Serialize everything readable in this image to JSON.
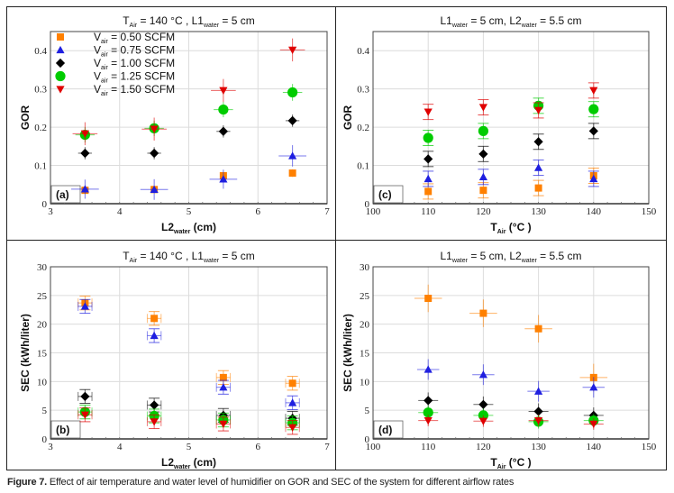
{
  "caption": {
    "label": "Figure 7.",
    "text": " Effect of air temperature and water level of humidifier on GOR and SEC of the system for different airflow rates"
  },
  "series_styles": [
    {
      "name": "V_air = 0.50 SCFM",
      "marker": "square",
      "color": "#ff8000"
    },
    {
      "name": "V_air = 0.75 SCFM",
      "marker": "triangle-up",
      "color": "#1f1fe0"
    },
    {
      "name": "V_air = 1.00 SCFM",
      "marker": "diamond",
      "color": "#000000"
    },
    {
      "name": "V_air = 1.25 SCFM",
      "marker": "circle",
      "color": "#00cc00"
    },
    {
      "name": "V_air = 1.50 SCFM",
      "marker": "triangle-down",
      "color": "#e00000"
    }
  ],
  "legend": {
    "placement": "top-left of panel (a)",
    "entries": [
      {
        "prefix": "V",
        "sub": "air",
        "text": " = 0.50 SCFM"
      },
      {
        "prefix": "V",
        "sub": "air",
        "text": " = 0.75 SCFM"
      },
      {
        "prefix": "V",
        "sub": "air",
        "text": " = 1.00 SCFM"
      },
      {
        "prefix": "V",
        "sub": "air",
        "text": " = 1.25 SCFM"
      },
      {
        "prefix": "V",
        "sub": "air",
        "text": " = 1.50 SCFM"
      }
    ]
  },
  "chart_data": [
    {
      "id": "a",
      "panel_label": "(a)",
      "type": "scatter",
      "title_parts": [
        [
          "T",
          ""
        ],
        [
          "Air",
          "sub"
        ],
        [
          " = 140 °C , L1",
          ""
        ],
        [
          "water",
          "sub"
        ],
        [
          " = 5 cm",
          ""
        ]
      ],
      "xlabel_parts": [
        [
          "L2",
          ""
        ],
        [
          "water",
          "sub"
        ],
        [
          " (cm)",
          ""
        ]
      ],
      "ylabel": "GOR",
      "xlim": [
        3,
        7
      ],
      "ylim": [
        0,
        0.45
      ],
      "xticks": [
        3,
        4,
        5,
        6,
        7
      ],
      "yticks": [
        0,
        0.1,
        0.2,
        0.3,
        0.4
      ],
      "ytick_labels": [
        "0",
        "0.1",
        "0.2",
        "0.3",
        "0.4"
      ],
      "grid": true,
      "x": [
        3.5,
        4.5,
        5.5,
        6.5
      ],
      "xerr_style": "cross",
      "series": [
        {
          "name": "V_air = 0.50 SCFM",
          "values": [
            0.035,
            0.037,
            0.073,
            0.08
          ],
          "yerr": [
            0.006,
            0.006,
            0.01,
            0.01
          ],
          "xerr": 0.05
        },
        {
          "name": "V_air = 0.75 SCFM",
          "values": [
            0.038,
            0.037,
            0.064,
            0.125
          ],
          "yerr": [
            0.025,
            0.027,
            0.025,
            0.028
          ],
          "xerr": 0.2
        },
        {
          "name": "V_air = 1.00 SCFM",
          "values": [
            0.132,
            0.132,
            0.189,
            0.217
          ],
          "yerr": [
            0.016,
            0.016,
            0.016,
            0.016
          ],
          "xerr": 0.1
        },
        {
          "name": "V_air = 1.25 SCFM",
          "values": [
            0.18,
            0.197,
            0.246,
            0.291
          ],
          "yerr": [
            0.02,
            0.02,
            0.02,
            0.022
          ],
          "xerr": 0.14
        },
        {
          "name": "V_air = 1.50 SCFM",
          "values": [
            0.183,
            0.195,
            0.296,
            0.402
          ],
          "yerr": [
            0.03,
            0.03,
            0.03,
            0.03
          ],
          "xerr": 0.18
        }
      ]
    },
    {
      "id": "c",
      "panel_label": "(c)",
      "type": "scatter",
      "title_parts": [
        [
          "L1",
          ""
        ],
        [
          "water",
          "sub"
        ],
        [
          " = 5 cm,  L2",
          ""
        ],
        [
          "water",
          "sub"
        ],
        [
          " = 5.5 cm",
          ""
        ]
      ],
      "xlabel_parts": [
        [
          "T",
          ""
        ],
        [
          "Air",
          "sub"
        ],
        [
          " (°C )",
          ""
        ]
      ],
      "ylabel": "GOR",
      "xlim": [
        100,
        150
      ],
      "ylim": [
        0,
        0.45
      ],
      "xticks": [
        100,
        110,
        120,
        130,
        140,
        150
      ],
      "yticks": [
        0,
        0.1,
        0.2,
        0.3,
        0.4
      ],
      "ytick_labels": [
        "0",
        "0.1",
        "0.2",
        "0.3",
        "0.4"
      ],
      "grid": true,
      "x": [
        110,
        120,
        130,
        140
      ],
      "xerr_style": "caps",
      "series": [
        {
          "name": "V_air = 0.50 SCFM",
          "values": [
            0.032,
            0.035,
            0.041,
            0.073
          ],
          "yerr": [
            0.02,
            0.02,
            0.02,
            0.02
          ],
          "xerr": 0
        },
        {
          "name": "V_air = 0.75 SCFM",
          "values": [
            0.065,
            0.07,
            0.094,
            0.065
          ],
          "yerr": [
            0.02,
            0.02,
            0.02,
            0.02
          ],
          "xerr": 0
        },
        {
          "name": "V_air = 1.00 SCFM",
          "values": [
            0.117,
            0.13,
            0.162,
            0.19
          ],
          "yerr": [
            0.02,
            0.02,
            0.02,
            0.02
          ],
          "xerr": 0
        },
        {
          "name": "V_air = 1.25 SCFM",
          "values": [
            0.172,
            0.19,
            0.256,
            0.247
          ],
          "yerr": [
            0.02,
            0.02,
            0.02,
            0.02
          ],
          "xerr": 0
        },
        {
          "name": "V_air = 1.50 SCFM",
          "values": [
            0.24,
            0.252,
            0.244,
            0.296
          ],
          "yerr": [
            0.02,
            0.02,
            0.02,
            0.02
          ],
          "xerr": 0
        }
      ]
    },
    {
      "id": "b",
      "panel_label": "(b)",
      "type": "scatter",
      "title_parts": [
        [
          "T",
          ""
        ],
        [
          "Air",
          "sub"
        ],
        [
          " = 140 °C , L1",
          ""
        ],
        [
          "water",
          "sub"
        ],
        [
          " = 5 cm",
          ""
        ]
      ],
      "xlabel_parts": [
        [
          "L2",
          ""
        ],
        [
          "water",
          "sub"
        ],
        [
          " (cm)",
          ""
        ]
      ],
      "ylabel": "SEC (kWh/liter)",
      "xlim": [
        3,
        7
      ],
      "ylim": [
        0,
        30
      ],
      "xticks": [
        3,
        4,
        5,
        6,
        7
      ],
      "yticks": [
        0,
        5,
        10,
        15,
        20,
        25,
        30
      ],
      "ytick_labels": [
        "0",
        "5",
        "10",
        "15",
        "20",
        "25",
        "30"
      ],
      "grid": true,
      "x": [
        3.5,
        4.5,
        5.5,
        6.5
      ],
      "xerr_style": "caps",
      "series": [
        {
          "name": "V_air = 0.50 SCFM",
          "values": [
            23.7,
            21.0,
            10.7,
            9.7
          ],
          "yerr": [
            1.2,
            1.2,
            1.2,
            1.2
          ],
          "xerr": 0.1
        },
        {
          "name": "V_air = 0.75 SCFM",
          "values": [
            23.1,
            18.0,
            9.0,
            6.3
          ],
          "yerr": [
            1.2,
            1.2,
            1.2,
            1.2
          ],
          "xerr": 0.1
        },
        {
          "name": "V_air = 1.00 SCFM",
          "values": [
            7.4,
            5.9,
            4.1,
            3.6
          ],
          "yerr": [
            1.2,
            1.2,
            1.2,
            1.2
          ],
          "xerr": 0.1
        },
        {
          "name": "V_air = 1.25 SCFM",
          "values": [
            4.7,
            4.0,
            3.3,
            2.8
          ],
          "yerr": [
            1.2,
            1.2,
            1.2,
            1.2
          ],
          "xerr": 0.1
        },
        {
          "name": "V_air = 1.50 SCFM",
          "values": [
            4.2,
            3.0,
            2.6,
            2.0
          ],
          "yerr": [
            1.2,
            1.2,
            1.2,
            1.2
          ],
          "xerr": 0.1
        }
      ]
    },
    {
      "id": "d",
      "panel_label": "(d)",
      "type": "scatter",
      "title_parts": [
        [
          "L1",
          ""
        ],
        [
          "water",
          "sub"
        ],
        [
          " = 5 cm,  L2",
          ""
        ],
        [
          "water",
          "sub"
        ],
        [
          " = 5.5 cm",
          ""
        ]
      ],
      "xlabel_parts": [
        [
          "T",
          ""
        ],
        [
          "Air",
          "sub"
        ],
        [
          " (°C )",
          ""
        ]
      ],
      "ylabel": "SEC (kWh/liter)",
      "xlim": [
        100,
        150
      ],
      "ylim": [
        0,
        30
      ],
      "xticks": [
        100,
        110,
        120,
        130,
        140,
        150
      ],
      "yticks": [
        0,
        5,
        10,
        15,
        20,
        25,
        30
      ],
      "ytick_labels": [
        "0",
        "5",
        "10",
        "15",
        "20",
        "25",
        "30"
      ],
      "grid": true,
      "x": [
        110,
        120,
        130,
        140
      ],
      "xerr_style": "cross",
      "series": [
        {
          "name": "V_air = 0.50 SCFM",
          "values": [
            24.5,
            21.9,
            19.2,
            10.7
          ],
          "yerr": [
            2.4,
            2.4,
            2.4,
            2.4
          ],
          "xerr": 2.5
        },
        {
          "name": "V_air = 0.75 SCFM",
          "values": [
            12.1,
            11.2,
            8.3,
            9.0
          ],
          "yerr": [
            1.8,
            1.8,
            1.8,
            1.8
          ],
          "xerr": 2.0
        },
        {
          "name": "V_air = 1.00 SCFM",
          "values": [
            6.7,
            6.0,
            4.8,
            4.1
          ],
          "yerr": [
            1.4,
            1.4,
            1.4,
            1.4
          ],
          "xerr": 1.8
        },
        {
          "name": "V_air = 1.25 SCFM",
          "values": [
            4.6,
            4.1,
            3.0,
            3.2
          ],
          "yerr": [
            1.2,
            1.2,
            1.2,
            1.2
          ],
          "xerr": 1.8
        },
        {
          "name": "V_air = 1.50 SCFM",
          "values": [
            3.2,
            3.1,
            3.2,
            2.6
          ],
          "yerr": [
            1.0,
            1.0,
            1.0,
            1.0
          ],
          "xerr": 1.8
        }
      ]
    }
  ]
}
